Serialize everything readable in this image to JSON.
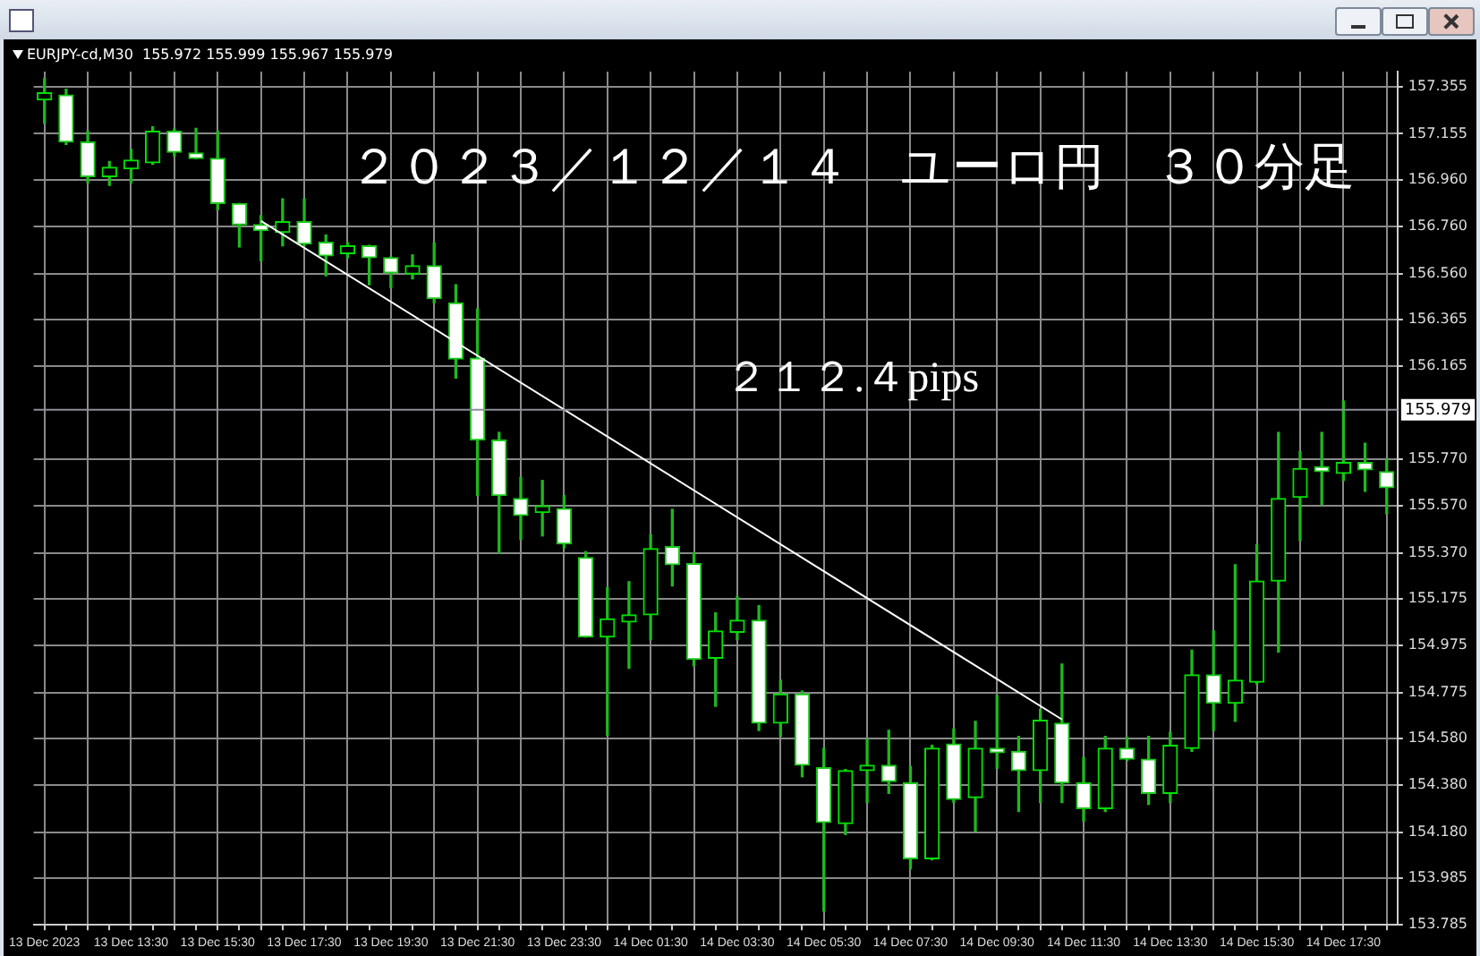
{
  "chart_data": {
    "type": "candlestick",
    "title": "２０２３／１２／１４　ユーロ円　３０分足",
    "subtitle": "EURJPY-cd,M30  155.972 155.999 155.967 155.979",
    "annotations": [
      "２１２.４pips"
    ],
    "categories": [
      "13 Dec 2023",
      null,
      null,
      null,
      "13 Dec 13:30",
      null,
      null,
      null,
      "13 Dec 15:30",
      null,
      null,
      null,
      "13 Dec 17:30",
      null,
      null,
      null,
      "13 Dec 19:30",
      null,
      null,
      null,
      "13 Dec 21:30",
      null,
      null,
      null,
      "13 Dec 23:30",
      null,
      null,
      null,
      "14 Dec 01:30",
      null,
      null,
      null,
      "14 Dec 03:30",
      null,
      null,
      null,
      "14 Dec 05:30",
      null,
      null,
      null,
      "14 Dec 07:30",
      null,
      null,
      null,
      "14 Dec 09:30",
      null,
      null,
      null,
      "14 Dec 11:30",
      null,
      null,
      null,
      "14 Dec 13:30",
      null,
      null,
      null,
      "14 Dec 15:30",
      null,
      null,
      null,
      "14 Dec 17:30",
      null,
      null
    ],
    "ohlc": [
      [
        157.3,
        157.39,
        157.2,
        157.33
      ],
      [
        157.32,
        157.345,
        157.11,
        157.12
      ],
      [
        157.12,
        157.166,
        156.947,
        156.973
      ],
      [
        156.973,
        157.037,
        156.935,
        157.012
      ],
      [
        157.006,
        157.089,
        156.947,
        157.043
      ],
      [
        157.032,
        157.185,
        157.025,
        157.166
      ],
      [
        157.166,
        157.175,
        157.06,
        157.076
      ],
      [
        157.073,
        157.178,
        157.05,
        157.05
      ],
      [
        157.05,
        157.166,
        156.832,
        156.858
      ],
      [
        156.858,
        156.858,
        156.673,
        156.768
      ],
      [
        156.768,
        156.806,
        156.614,
        156.743
      ],
      [
        156.735,
        156.878,
        156.678,
        156.781
      ],
      [
        156.781,
        156.878,
        156.678,
        156.686
      ],
      [
        156.693,
        156.724,
        156.55,
        156.635
      ],
      [
        156.645,
        156.691,
        156.627,
        156.678
      ],
      [
        156.678,
        156.68,
        156.512,
        156.627
      ],
      [
        156.627,
        156.63,
        156.499,
        156.563
      ],
      [
        156.558,
        156.639,
        156.537,
        156.593
      ],
      [
        156.593,
        156.691,
        156.435,
        156.453
      ],
      [
        156.435,
        156.512,
        156.114,
        156.196
      ],
      [
        156.199,
        156.409,
        155.614,
        155.85
      ],
      [
        155.85,
        155.883,
        155.37,
        155.614
      ],
      [
        155.601,
        155.691,
        155.427,
        155.529
      ],
      [
        155.542,
        155.678,
        155.442,
        155.57
      ],
      [
        155.558,
        155.614,
        155.391,
        155.408
      ],
      [
        155.35,
        155.375,
        155.011,
        155.011
      ],
      [
        155.011,
        155.221,
        154.593,
        155.088
      ],
      [
        155.075,
        155.247,
        154.878,
        155.106
      ],
      [
        155.106,
        155.447,
        155.0,
        155.388
      ],
      [
        155.396,
        155.555,
        155.229,
        155.319
      ],
      [
        155.324,
        155.37,
        154.888,
        154.916
      ],
      [
        154.921,
        155.114,
        154.716,
        155.037
      ],
      [
        155.031,
        155.183,
        155.0,
        155.083
      ],
      [
        155.083,
        155.145,
        154.613,
        154.644
      ],
      [
        154.644,
        154.827,
        154.588,
        154.768
      ],
      [
        154.768,
        154.781,
        154.416,
        154.465
      ],
      [
        154.454,
        154.537,
        153.844,
        154.221
      ],
      [
        154.216,
        154.447,
        154.17,
        154.442
      ],
      [
        154.442,
        154.575,
        154.306,
        154.465
      ],
      [
        154.465,
        154.614,
        154.345,
        154.396
      ],
      [
        154.39,
        154.46,
        154.024,
        154.067
      ],
      [
        154.067,
        154.55,
        154.062,
        154.537
      ],
      [
        154.555,
        154.619,
        154.306,
        154.319
      ],
      [
        154.327,
        154.652,
        154.183,
        154.537
      ],
      [
        154.537,
        154.762,
        154.452,
        154.519
      ],
      [
        154.524,
        154.588,
        154.268,
        154.442
      ],
      [
        154.442,
        154.703,
        154.306,
        154.657
      ],
      [
        154.644,
        154.896,
        154.306,
        154.39
      ],
      [
        154.39,
        154.498,
        154.227,
        154.28
      ],
      [
        154.28,
        154.588,
        154.268,
        154.537
      ],
      [
        154.537,
        154.583,
        154.485,
        154.491
      ],
      [
        154.491,
        154.588,
        154.298,
        154.345
      ],
      [
        154.345,
        154.606,
        154.306,
        154.55
      ],
      [
        154.537,
        154.955,
        154.524,
        154.85
      ],
      [
        154.85,
        155.037,
        154.613,
        154.729
      ],
      [
        154.729,
        155.319,
        154.652,
        154.827
      ],
      [
        154.819,
        155.404,
        154.811,
        155.25
      ],
      [
        155.25,
        155.883,
        154.947,
        155.601
      ],
      [
        155.606,
        155.801,
        155.422,
        155.729
      ],
      [
        155.737,
        155.883,
        155.576,
        155.716
      ],
      [
        155.708,
        156.016,
        155.678,
        155.755
      ],
      [
        155.755,
        155.837,
        155.632,
        155.724
      ],
      [
        155.716,
        155.768,
        155.537,
        155.647
      ]
    ],
    "series": [
      {
        "type": "line",
        "color": "#ffffff",
        "values": [
          null,
          null,
          null,
          null,
          null,
          null,
          null,
          null,
          null,
          null,
          156.784,
          null,
          null,
          null,
          null,
          null,
          null,
          null,
          null,
          null,
          null,
          null,
          null,
          null,
          null,
          null,
          null,
          null,
          null,
          null,
          null,
          null,
          null,
          null,
          null,
          null,
          null,
          null,
          null,
          null,
          null,
          null,
          null,
          null,
          null,
          null,
          null,
          154.66,
          null,
          null,
          null,
          null,
          null,
          null,
          null,
          null,
          null,
          null,
          null,
          null,
          null,
          null,
          null
        ]
      }
    ],
    "ylim": [
      153.785,
      157.42
    ],
    "yticks": [
      153.785,
      153.985,
      {
        "value": 154.18,
        "label": "154.180"
      },
      {
        "value": 154.38,
        "label": "154.380"
      },
      {
        "value": 154.58,
        "label": "154.580"
      },
      154.775,
      154.975,
      155.175,
      {
        "value": 155.37,
        "label": "155.370"
      },
      {
        "value": 155.57,
        "label": "155.570"
      },
      {
        "value": 155.77,
        "label": "155.770"
      },
      156.165,
      156.365,
      {
        "value": 156.56,
        "label": "156.560"
      },
      {
        "value": 156.76,
        "label": "156.760"
      },
      {
        "value": 156.96,
        "label": "156.960"
      },
      157.155,
      157.355
    ],
    "ref_lines": [
      {
        "axis": "y",
        "value": 155.979,
        "label": "155.979",
        "color": "#8a8f99"
      }
    ],
    "grid": true,
    "legend": false
  }
}
